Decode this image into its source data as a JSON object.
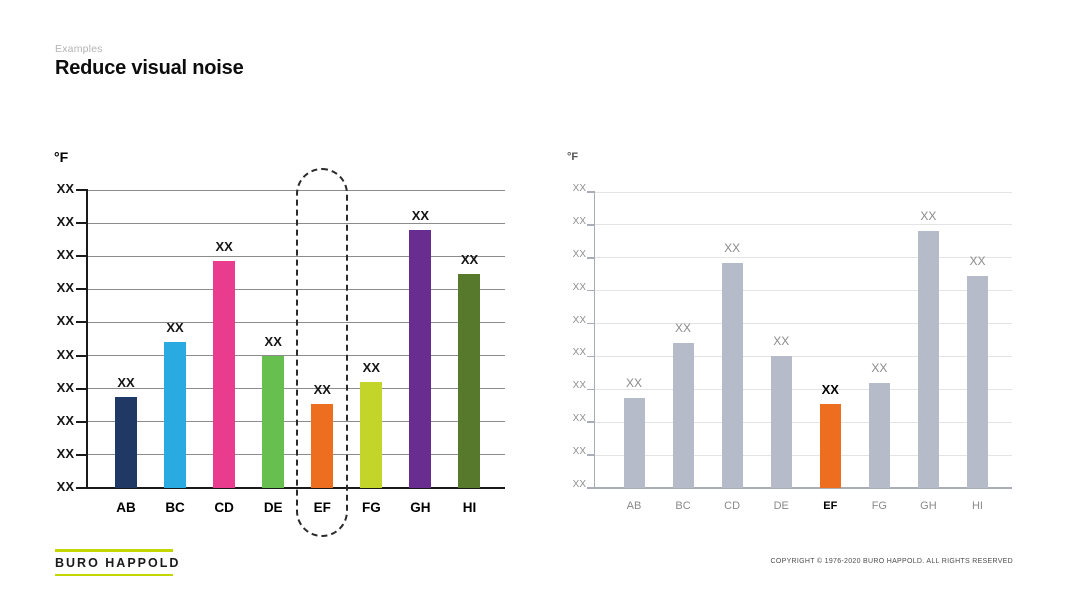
{
  "slide": {
    "eyebrow": "Examples",
    "title": "Reduce visual noise"
  },
  "footer": {
    "logo_text": "BURO HAPPOLD",
    "copyright": "COPYRIGHT © 1976-2020 BURO HAPPOLD. ALL RIGHTS RESERVED"
  },
  "colors": {
    "logo_rule": "#c3d600",
    "highlight_orange": "#ed6e1e",
    "muted_gray_bar": "#b6bbc9",
    "noisy_grid": "#8c8c8c",
    "noisy_axis": "#1a1a1a",
    "clean_grid": "#e4e4e7",
    "clean_axis": "#a9aeb6",
    "clean_text": "#8a8a8a"
  },
  "chart_data": [
    {
      "id": "chart-noisy",
      "name": "original-noisy-chart",
      "type": "bar",
      "title": "",
      "unit_label": "°F",
      "categories": [
        "AB",
        "BC",
        "CD",
        "DE",
        "EF",
        "FG",
        "GH",
        "HI"
      ],
      "values": [
        2.75,
        4.4,
        6.85,
        4.0,
        2.55,
        3.2,
        7.8,
        6.45
      ],
      "value_labels": [
        "XX",
        "XX",
        "XX",
        "XX",
        "XX",
        "XX",
        "XX",
        "XX"
      ],
      "ytick_labels": [
        "XX",
        "XX",
        "XX",
        "XX",
        "XX",
        "XX",
        "XX",
        "XX",
        "XX",
        "XX"
      ],
      "ylim": [
        0,
        9
      ],
      "grid": true,
      "legend": "none",
      "bar_colors": [
        "#1f3864",
        "#29abe2",
        "#ea3c8e",
        "#67bf4f",
        "#ed6e1e",
        "#c3d528",
        "#682d8f",
        "#57792c"
      ],
      "highlight": {
        "category": "EF",
        "style": "dashed-outline"
      }
    },
    {
      "id": "chart-clean",
      "name": "redesigned-clean-chart",
      "type": "bar",
      "title": "",
      "unit_label": "°F",
      "categories": [
        "AB",
        "BC",
        "CD",
        "DE",
        "EF",
        "FG",
        "GH",
        "HI"
      ],
      "values": [
        2.75,
        4.4,
        6.85,
        4.0,
        2.55,
        3.2,
        7.8,
        6.45
      ],
      "value_labels": [
        "XX",
        "XX",
        "XX",
        "XX",
        "XX",
        "XX",
        "XX",
        "XX"
      ],
      "ytick_labels": [
        "XX",
        "XX",
        "XX",
        "XX",
        "XX",
        "XX",
        "XX",
        "XX",
        "XX",
        "XX"
      ],
      "ylim": [
        0,
        9
      ],
      "grid": true,
      "legend": "none",
      "bar_colors": [
        "#b6bbc9",
        "#b6bbc9",
        "#b6bbc9",
        "#b6bbc9",
        "#ed6e1e",
        "#b6bbc9",
        "#b6bbc9",
        "#b6bbc9"
      ],
      "highlight": {
        "category": "EF",
        "style": "accent-color-bold-label"
      }
    }
  ]
}
